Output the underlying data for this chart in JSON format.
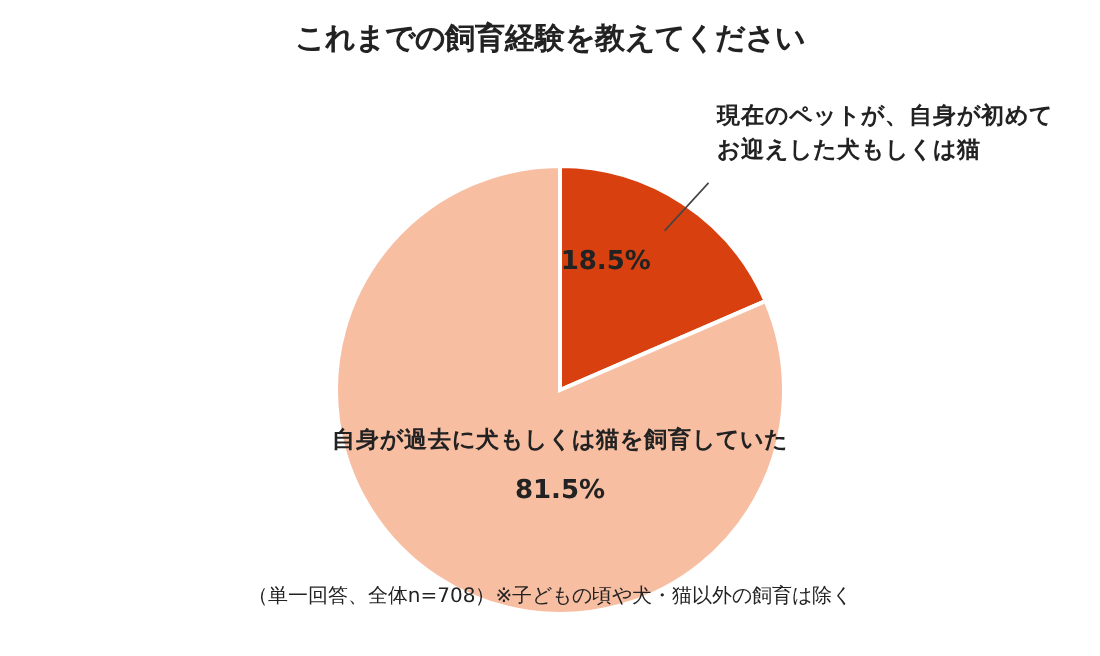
{
  "chart_data": {
    "type": "pie",
    "title": "これまでの飼育経験を教えてください",
    "categories": [
      "現在のペットが、自身が初めてお迎えした犬もしくは猫",
      "自身が過去に犬もしくは猫を飼育していた"
    ],
    "values": [
      18.5,
      81.5
    ],
    "colors": [
      "#d9400f",
      "#f7bea2"
    ],
    "value_labels": [
      "18.5%",
      "81.5%"
    ],
    "annotations": [
      "（単一回答、全体n=708）※子どもの頃や犬・猫以外の飼育は除く"
    ]
  }
}
